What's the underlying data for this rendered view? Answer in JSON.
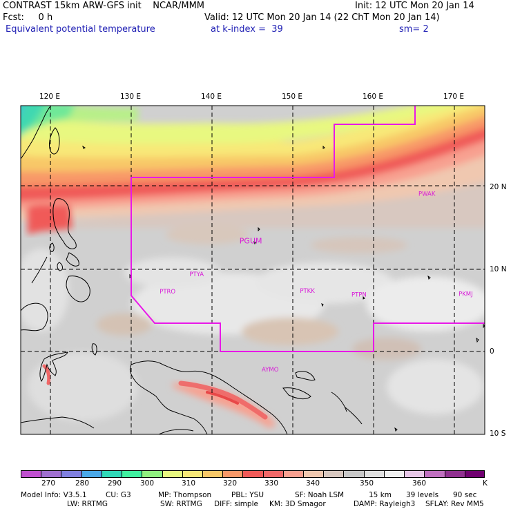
{
  "header": {
    "model_line": "CONTRAST 15km ARW-GFS init    NCAR/MMM",
    "init_line": "Init: 12 UTC Mon 20 Jan 14",
    "fcst_line": "Fcst:     0 h",
    "valid_line": "Valid: 12 UTC Mon 20 Jan 14 (22 ChT Mon 20 Jan 14)",
    "field_name": "Equivalent potential temperature",
    "level_text": "at k-index =  39",
    "smoothing_text": "sm= 2"
  },
  "map": {
    "lon_labels": [
      {
        "lon": 120,
        "text": "120 E"
      },
      {
        "lon": 130,
        "text": "130 E"
      },
      {
        "lon": 140,
        "text": "140 E"
      },
      {
        "lon": 150,
        "text": "150 E"
      },
      {
        "lon": 160,
        "text": "160 E"
      },
      {
        "lon": 170,
        "text": "170 E"
      }
    ],
    "lat_labels": [
      {
        "lat": 20,
        "text": "20 N"
      },
      {
        "lat": 10,
        "text": "10 N"
      },
      {
        "lat": 0,
        "text": "0"
      },
      {
        "lat": -10,
        "text": "10 S"
      }
    ],
    "stations": [
      {
        "id": "PWAK",
        "lon": 166.6,
        "lat": 19.3
      },
      {
        "id": "PGUM",
        "lon": 144.8,
        "lat": 13.5
      },
      {
        "id": "PTYA",
        "lon": 138.1,
        "lat": 9.5
      },
      {
        "id": "PTRO",
        "lon": 134.5,
        "lat": 7.4
      },
      {
        "id": "PTKK",
        "lon": 151.8,
        "lat": 7.5
      },
      {
        "id": "PTPN",
        "lon": 158.2,
        "lat": 7.0
      },
      {
        "id": "PKMJ",
        "lon": 171.4,
        "lat": 7.1
      },
      {
        "id": "AYMO",
        "lon": 147.2,
        "lat": -2.1
      }
    ],
    "colors": {
      "domain_boundary": "#e818e8",
      "station_label": "#d818d8"
    }
  },
  "colorbar": {
    "colors": [
      "#c050d0",
      "#a070d0",
      "#8080e0",
      "#4aa8e8",
      "#30d8b8",
      "#40f0a0",
      "#90f080",
      "#e8f880",
      "#f8e878",
      "#f8c868",
      "#f89868",
      "#f05a58",
      "#f06868",
      "#f8a090",
      "#f0c8b0",
      "#d8c8c0",
      "#c8c8c8",
      "#e0e0e0",
      "#f0f0f0",
      "#e8c8e8",
      "#c070c0",
      "#903090",
      "#700070"
    ],
    "labels": [
      "270",
      "280",
      "290",
      "300",
      "310",
      "320",
      "330",
      "340",
      "350",
      "360"
    ],
    "unit": "K"
  },
  "footer": {
    "line1": [
      "Model Info: V3.5.1",
      "CU: G3",
      "MP: Thompson",
      "PBL: YSU",
      "SF: Noah LSM",
      "15 km",
      "39 levels",
      "90 sec"
    ],
    "line2": [
      "LW: RRTMG",
      "SW: RRTMG",
      "DIFF: simple",
      "KM: 3D Smagor",
      "DAMP: Rayleigh3",
      "SFLAY: Rev MM5"
    ]
  }
}
